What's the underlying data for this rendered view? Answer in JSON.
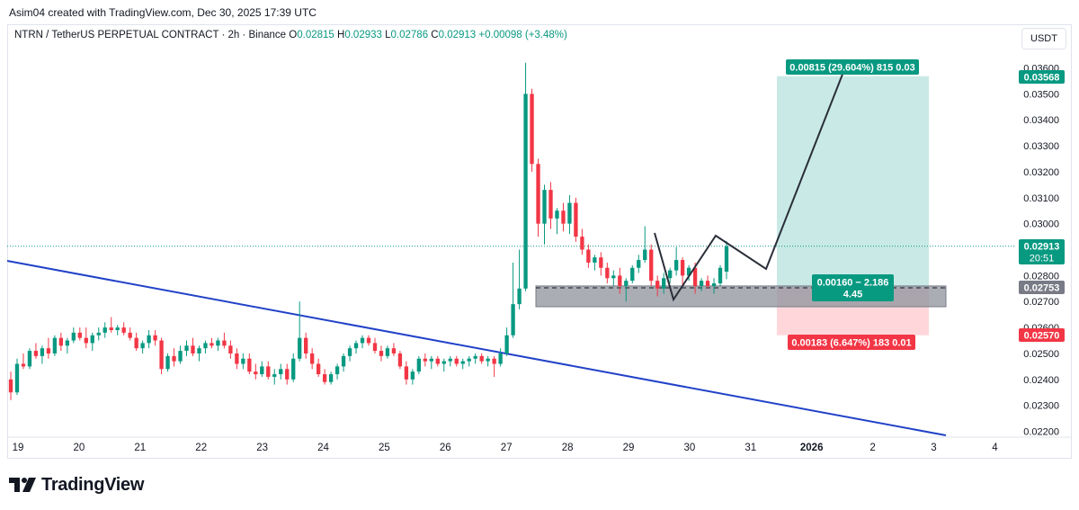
{
  "header": {
    "credit": "Asim04 created with TradingView.com, Dec 30, 2025 17:39 UTC",
    "symbol": "NTRN / TetherUS PERPETUAL CONTRACT · 2h · Binance",
    "open_label": "O",
    "open": "0.02815",
    "high_label": "H",
    "high": "0.02933",
    "low_label": "L",
    "low": "0.02786",
    "close_label": "C",
    "close": "0.02913",
    "change": "+0.00098 (+3.48%)",
    "currency": "USDT"
  },
  "price_axis": {
    "ticks": [
      "0.03600",
      "0.03500",
      "0.03400",
      "0.03300",
      "0.03200",
      "0.03100",
      "0.03000",
      "0.02900",
      "0.02800",
      "0.02700",
      "0.02600",
      "0.02500",
      "0.02400",
      "0.02300",
      "0.02200"
    ],
    "labels": {
      "target": "0.03568",
      "current": "0.02913",
      "countdown": "20:51",
      "entry": "0.02753",
      "stop": "0.02570"
    }
  },
  "time_axis": {
    "ticks": [
      "19",
      "20",
      "21",
      "22",
      "23",
      "24",
      "25",
      "26",
      "27",
      "28",
      "29",
      "30",
      "31",
      "2026",
      "2",
      "3",
      "4"
    ]
  },
  "position_tool": {
    "target_label": "0.00815 (29.604%) 815 0.03",
    "stop_label": "0.00183 (6.647%) 183 0.01",
    "entry_label_line1": "0.00160 − 2.186",
    "entry_label_line2": "4.45"
  },
  "colors": {
    "up": "#089981",
    "down": "#f23645",
    "trendline": "#2142c8",
    "profit_zone": "#b2dfdb",
    "loss_zone": "#ffcdd2",
    "last_price_line": "#089981"
  },
  "brand": {
    "name": "TradingView"
  },
  "chart_data": {
    "type": "candlestick",
    "symbol": "NTRN / TetherUS PERPETUAL CONTRACT",
    "interval": "2h",
    "y_range": [
      0.0215,
      0.0365
    ],
    "x_range": [
      "Dec 18",
      "Jan 5"
    ],
    "candles": [
      [
        0.024,
        0.0243,
        0.0232,
        0.0235
      ],
      [
        0.0235,
        0.0248,
        0.0234,
        0.0246
      ],
      [
        0.0246,
        0.025,
        0.0244,
        0.0245
      ],
      [
        0.0245,
        0.0252,
        0.0244,
        0.0251
      ],
      [
        0.0251,
        0.0254,
        0.0248,
        0.0249
      ],
      [
        0.0249,
        0.0253,
        0.0246,
        0.0252
      ],
      [
        0.0252,
        0.0256,
        0.0248,
        0.025
      ],
      [
        0.025,
        0.0257,
        0.0249,
        0.0256
      ],
      [
        0.0256,
        0.0258,
        0.0251,
        0.0253
      ],
      [
        0.0253,
        0.0256,
        0.025,
        0.0255
      ],
      [
        0.0255,
        0.026,
        0.0254,
        0.0258
      ],
      [
        0.0258,
        0.026,
        0.0255,
        0.0256
      ],
      [
        0.0256,
        0.026,
        0.0252,
        0.0254
      ],
      [
        0.0254,
        0.0258,
        0.0251,
        0.0257
      ],
      [
        0.0257,
        0.026,
        0.0255,
        0.0258
      ],
      [
        0.0258,
        0.0262,
        0.0256,
        0.026
      ],
      [
        0.026,
        0.0264,
        0.0258,
        0.0259
      ],
      [
        0.0259,
        0.0261,
        0.0257,
        0.026
      ],
      [
        0.026,
        0.0262,
        0.0257,
        0.0258
      ],
      [
        0.0258,
        0.026,
        0.0255,
        0.0256
      ],
      [
        0.0256,
        0.0258,
        0.0251,
        0.0252
      ],
      [
        0.0252,
        0.0255,
        0.025,
        0.0254
      ],
      [
        0.0254,
        0.0259,
        0.0252,
        0.0257
      ],
      [
        0.0257,
        0.0259,
        0.0253,
        0.0255
      ],
      [
        0.0255,
        0.0256,
        0.0242,
        0.0244
      ],
      [
        0.0244,
        0.025,
        0.0243,
        0.0249
      ],
      [
        0.0249,
        0.0252,
        0.0245,
        0.0247
      ],
      [
        0.0247,
        0.0253,
        0.0246,
        0.0251
      ],
      [
        0.0251,
        0.0255,
        0.0249,
        0.0253
      ],
      [
        0.0253,
        0.0256,
        0.0249,
        0.025
      ],
      [
        0.025,
        0.0253,
        0.0247,
        0.0252
      ],
      [
        0.0252,
        0.0255,
        0.025,
        0.0254
      ],
      [
        0.0254,
        0.0256,
        0.0252,
        0.0253
      ],
      [
        0.0253,
        0.0256,
        0.0251,
        0.0255
      ],
      [
        0.0255,
        0.0258,
        0.0252,
        0.0253
      ],
      [
        0.0253,
        0.0255,
        0.0248,
        0.025
      ],
      [
        0.025,
        0.0252,
        0.0244,
        0.0246
      ],
      [
        0.0246,
        0.025,
        0.0244,
        0.0248
      ],
      [
        0.0248,
        0.025,
        0.0242,
        0.0243
      ],
      [
        0.0243,
        0.0246,
        0.024,
        0.0242
      ],
      [
        0.0242,
        0.0247,
        0.0241,
        0.0245
      ],
      [
        0.0245,
        0.0247,
        0.024,
        0.0241
      ],
      [
        0.0241,
        0.0244,
        0.0238,
        0.0242
      ],
      [
        0.0242,
        0.0246,
        0.024,
        0.0244
      ],
      [
        0.0244,
        0.0246,
        0.0238,
        0.024
      ],
      [
        0.024,
        0.025,
        0.0239,
        0.0248
      ],
      [
        0.0248,
        0.027,
        0.0247,
        0.0256
      ],
      [
        0.0256,
        0.0258,
        0.0248,
        0.025
      ],
      [
        0.025,
        0.0252,
        0.0244,
        0.0246
      ],
      [
        0.0246,
        0.0248,
        0.0241,
        0.0242
      ],
      [
        0.0242,
        0.0244,
        0.0238,
        0.0239
      ],
      [
        0.0239,
        0.0243,
        0.0238,
        0.0242
      ],
      [
        0.0242,
        0.0246,
        0.024,
        0.0245
      ],
      [
        0.0245,
        0.025,
        0.0243,
        0.0249
      ],
      [
        0.0249,
        0.0253,
        0.0247,
        0.0252
      ],
      [
        0.0252,
        0.0255,
        0.025,
        0.0254
      ],
      [
        0.0254,
        0.0257,
        0.0252,
        0.0256
      ],
      [
        0.0256,
        0.0257,
        0.0253,
        0.0254
      ],
      [
        0.0254,
        0.0256,
        0.025,
        0.0251
      ],
      [
        0.0251,
        0.0253,
        0.0247,
        0.0249
      ],
      [
        0.0249,
        0.0253,
        0.0248,
        0.0252
      ],
      [
        0.0252,
        0.0254,
        0.0249,
        0.025
      ],
      [
        0.025,
        0.0251,
        0.0244,
        0.0245
      ],
      [
        0.0245,
        0.0247,
        0.0238,
        0.024
      ],
      [
        0.024,
        0.0244,
        0.0238,
        0.0243
      ],
      [
        0.0243,
        0.0249,
        0.0242,
        0.0248
      ],
      [
        0.0248,
        0.025,
        0.0245,
        0.0247
      ],
      [
        0.0247,
        0.0249,
        0.0244,
        0.0248
      ],
      [
        0.0248,
        0.0249,
        0.0245,
        0.0246
      ],
      [
        0.0246,
        0.0248,
        0.0243,
        0.0247
      ],
      [
        0.0247,
        0.0249,
        0.0245,
        0.0248
      ],
      [
        0.0248,
        0.0249,
        0.0245,
        0.0246
      ],
      [
        0.0246,
        0.0248,
        0.0244,
        0.0247
      ],
      [
        0.0247,
        0.0249,
        0.0245,
        0.0248
      ],
      [
        0.0248,
        0.025,
        0.0246,
        0.0249
      ],
      [
        0.0249,
        0.025,
        0.0246,
        0.0247
      ],
      [
        0.0247,
        0.0249,
        0.0245,
        0.0248
      ],
      [
        0.0248,
        0.0249,
        0.0241,
        0.0246
      ],
      [
        0.0246,
        0.0252,
        0.0245,
        0.025
      ],
      [
        0.025,
        0.026,
        0.0249,
        0.0257
      ],
      [
        0.0257,
        0.0285,
        0.0256,
        0.0269
      ],
      [
        0.0269,
        0.029,
        0.0267,
        0.0275
      ],
      [
        0.0275,
        0.0362,
        0.0274,
        0.035
      ],
      [
        0.035,
        0.0352,
        0.032,
        0.0323
      ],
      [
        0.0323,
        0.0325,
        0.0295,
        0.03
      ],
      [
        0.03,
        0.0315,
        0.0292,
        0.0313
      ],
      [
        0.0313,
        0.0316,
        0.0298,
        0.0302
      ],
      [
        0.0302,
        0.0306,
        0.0296,
        0.0305
      ],
      [
        0.0305,
        0.0308,
        0.0297,
        0.03
      ],
      [
        0.03,
        0.0311,
        0.0296,
        0.0308
      ],
      [
        0.0308,
        0.031,
        0.0293,
        0.0295
      ],
      [
        0.0295,
        0.0298,
        0.0288,
        0.029
      ],
      [
        0.029,
        0.0292,
        0.0283,
        0.0285
      ],
      [
        0.0285,
        0.0288,
        0.0282,
        0.0287
      ],
      [
        0.0287,
        0.0289,
        0.028,
        0.0283
      ],
      [
        0.0283,
        0.0285,
        0.0277,
        0.0279
      ],
      [
        0.0279,
        0.0282,
        0.0276,
        0.028
      ],
      [
        0.028,
        0.0283,
        0.0273,
        0.0276
      ],
      [
        0.0276,
        0.0279,
        0.027,
        0.0278
      ],
      [
        0.0278,
        0.0284,
        0.0277,
        0.0283
      ],
      [
        0.0283,
        0.0288,
        0.0281,
        0.0286
      ],
      [
        0.0286,
        0.0299,
        0.0285,
        0.029
      ],
      [
        0.029,
        0.0292,
        0.0276,
        0.0278
      ],
      [
        0.0278,
        0.028,
        0.0272,
        0.0275
      ],
      [
        0.0275,
        0.0281,
        0.0273,
        0.0279
      ],
      [
        0.0279,
        0.0283,
        0.0277,
        0.0282
      ],
      [
        0.0282,
        0.0291,
        0.028,
        0.0286
      ],
      [
        0.0286,
        0.0287,
        0.0276,
        0.028
      ],
      [
        0.028,
        0.0284,
        0.0278,
        0.0283
      ],
      [
        0.0283,
        0.0285,
        0.0273,
        0.0276
      ],
      [
        0.0276,
        0.0279,
        0.0274,
        0.0278
      ],
      [
        0.0278,
        0.028,
        0.0275,
        0.0276
      ],
      [
        0.0276,
        0.0279,
        0.0273,
        0.0277
      ],
      [
        0.0277,
        0.0284,
        0.0276,
        0.0283
      ],
      [
        0.02815,
        0.02933,
        0.02786,
        0.02913
      ]
    ],
    "trendline": [
      [
        "Dec 18",
        0.0287
      ],
      [
        "Jan 3",
        0.0219
      ]
    ],
    "projection_path": [
      [
        "Dec 29 12:00",
        0.0297
      ],
      [
        "Dec 29 20:00",
        0.027
      ],
      [
        "Dec 30 12:00",
        0.0296
      ],
      [
        "Dec 31 12:00",
        0.0282
      ],
      [
        "Jan 1 16:00",
        0.0358
      ]
    ],
    "long_position": {
      "entry": 0.02753,
      "target": 0.03568,
      "stop": 0.0257
    },
    "support_zone": [
      0.0268,
      0.0276
    ],
    "last_price": 0.02913
  }
}
